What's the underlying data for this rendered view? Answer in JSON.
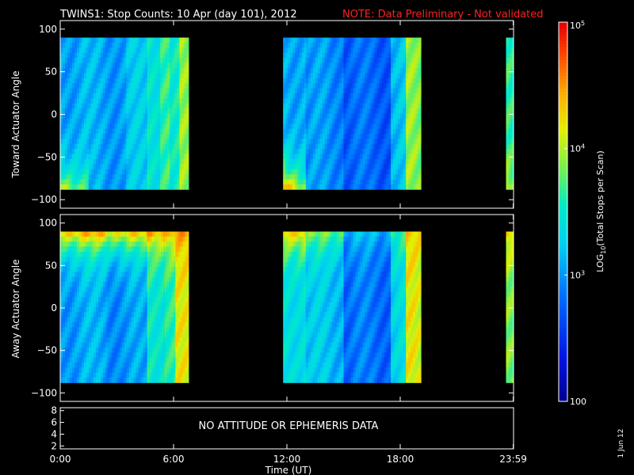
{
  "header": {
    "title": "TWINS1: Stop Counts: 10 Apr (day 101), 2012",
    "note": "NOTE: Data Preliminary - Not validated",
    "note_color": "#ff2020"
  },
  "footer": {
    "date_stamp": "1 Jun 12"
  },
  "colors": {
    "background": "#000000",
    "axes": "#ffffff",
    "text": "#ffffff"
  },
  "chart_data": [
    {
      "type": "heatmap",
      "panel": "top",
      "ylabel": "Toward Actuator Angle",
      "xlabel": "",
      "xlim": [
        0,
        24
      ],
      "ylim": [
        -110,
        110
      ],
      "yticks": [
        -100,
        -50,
        0,
        50,
        100
      ],
      "ytick_labels": [
        "−100",
        "−50",
        "0",
        "50",
        "100"
      ],
      "angle_range": [
        -88,
        90
      ],
      "data_intervals_hours": [
        [
          0,
          6.8
        ],
        [
          11.8,
          19.1
        ],
        [
          23.6,
          24
        ]
      ],
      "profiles": [
        {
          "start": 0.0,
          "end": 1.5,
          "base": 0.37,
          "low_end_boost": 0.32
        },
        {
          "start": 1.5,
          "end": 3.5,
          "base": 0.36,
          "low_end_boost": 0.0
        },
        {
          "start": 3.5,
          "end": 4.6,
          "base": 0.4,
          "low_end_boost": 0.0
        },
        {
          "start": 4.6,
          "end": 5.3,
          "base": 0.5,
          "low_end_boost": 0.0
        },
        {
          "start": 5.3,
          "end": 5.8,
          "base": 0.58,
          "low_end_boost": 0.0
        },
        {
          "start": 5.8,
          "end": 6.3,
          "base": 0.5,
          "low_end_boost": 0.0
        },
        {
          "start": 6.3,
          "end": 6.8,
          "base": 0.62,
          "low_end_boost": 0.0
        },
        {
          "start": 11.8,
          "end": 13.0,
          "base": 0.38,
          "low_end_boost": 0.45
        },
        {
          "start": 13.0,
          "end": 15.0,
          "base": 0.33,
          "low_end_boost": 0.0
        },
        {
          "start": 15.0,
          "end": 17.5,
          "base": 0.26,
          "low_end_boost": 0.0
        },
        {
          "start": 17.5,
          "end": 18.3,
          "base": 0.4,
          "low_end_boost": 0.0
        },
        {
          "start": 18.3,
          "end": 19.1,
          "base": 0.62,
          "low_end_boost": 0.0
        },
        {
          "start": 23.6,
          "end": 24.0,
          "base": 0.55,
          "low_end_boost": 0.15
        }
      ]
    },
    {
      "type": "heatmap",
      "panel": "bottom",
      "ylabel": "Away Actuator Angle",
      "xlabel": "",
      "xlim": [
        0,
        24
      ],
      "ylim": [
        -110,
        110
      ],
      "yticks": [
        -100,
        -50,
        0,
        50,
        100
      ],
      "ytick_labels": [
        "−100",
        "−50",
        "0",
        "50",
        "100"
      ],
      "angle_range": [
        -88,
        90
      ],
      "data_intervals_hours": [
        [
          0,
          6.8
        ],
        [
          11.8,
          19.1
        ],
        [
          23.6,
          24
        ]
      ],
      "profiles": [
        {
          "start": 0.0,
          "end": 2.5,
          "base": 0.36,
          "high_end_boost": 0.42
        },
        {
          "start": 2.5,
          "end": 4.6,
          "base": 0.34,
          "high_end_boost": 0.4
        },
        {
          "start": 4.6,
          "end": 5.5,
          "base": 0.52,
          "high_end_boost": 0.3
        },
        {
          "start": 5.5,
          "end": 6.1,
          "base": 0.55,
          "high_end_boost": 0.25
        },
        {
          "start": 6.1,
          "end": 6.8,
          "base": 0.7,
          "high_end_boost": 0.1
        },
        {
          "start": 11.8,
          "end": 13.0,
          "base": 0.48,
          "high_end_boost": 0.3
        },
        {
          "start": 13.0,
          "end": 15.0,
          "base": 0.4,
          "high_end_boost": 0.2
        },
        {
          "start": 15.0,
          "end": 17.5,
          "base": 0.28,
          "high_end_boost": 0.1
        },
        {
          "start": 17.5,
          "end": 18.3,
          "base": 0.45,
          "high_end_boost": 0.1
        },
        {
          "start": 18.3,
          "end": 19.1,
          "base": 0.7,
          "high_end_boost": 0.05
        },
        {
          "start": 23.6,
          "end": 24.0,
          "base": 0.62,
          "high_end_boost": 0.15
        }
      ]
    },
    {
      "type": "line",
      "panel": "attitude",
      "xlim": [
        0,
        24
      ],
      "ylim": [
        1.5,
        8.5
      ],
      "yticks": [
        2,
        4,
        6,
        8
      ],
      "ytick_labels": [
        "2",
        "4",
        "6",
        "8"
      ],
      "message": "NO ATTITUDE OR EPHEMERIS DATA",
      "xlabel": "Time (UT)",
      "xticks": [
        0,
        6,
        12,
        18,
        23.983
      ],
      "xtick_labels": [
        "0:00",
        "6:00",
        "12:00",
        "18:00",
        "23:59"
      ]
    }
  ],
  "colorbar": {
    "label": "LOG",
    "label_sub": "10",
    "label_rest": "(Total Stops per Scan)",
    "range": [
      100,
      100000
    ],
    "scale": "log",
    "ticks": [
      {
        "value": 100,
        "label": "100"
      },
      {
        "value": 1000,
        "label": "10",
        "sup": "3"
      },
      {
        "value": 10000,
        "label": "10",
        "sup": "4"
      },
      {
        "value": 100000,
        "label": "10",
        "sup": "5"
      }
    ],
    "colormap": "rainbow (dark blue to red)"
  }
}
